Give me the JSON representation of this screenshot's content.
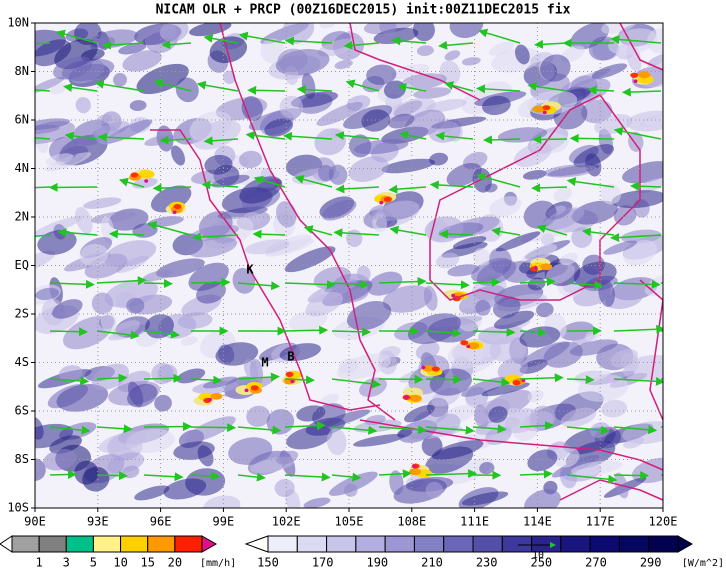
{
  "title": "NICAM OLR + PRCP (00Z16DEC2015) init:00Z11DEC2015 fix",
  "lat_labels": [
    "10N",
    "8N",
    "6N",
    "4N",
    "2N",
    "EQ",
    "2S",
    "4S",
    "6S",
    "8S",
    "10S"
  ],
  "lon_labels": [
    "90E",
    "93E",
    "96E",
    "99E",
    "102E",
    "105E",
    "108E",
    "111E",
    "114E",
    "117E",
    "120E"
  ],
  "place_marks": [
    "K",
    "M",
    "B"
  ],
  "reference_vector_label": "10",
  "precip_colorbar": {
    "labels": [
      1,
      3,
      5,
      10,
      15,
      20
    ],
    "unit": "[mm/h]"
  },
  "olr_colorbar": {
    "labels": [
      150,
      170,
      190,
      210,
      230,
      250,
      270,
      290
    ],
    "unit": "[W/m^2]"
  }
}
